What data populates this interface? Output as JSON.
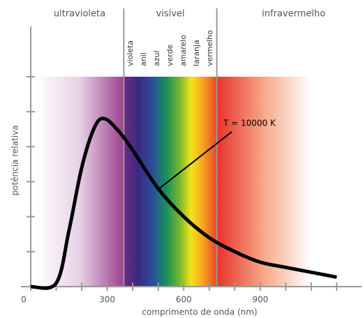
{
  "chart_data": {
    "type": "line",
    "x_label": "comprimento de onda (nm)",
    "y_label": "potência relativa",
    "regions": [
      {
        "label": "ultravioleta",
        "from": 0,
        "to": 365
      },
      {
        "label": "visível",
        "from": 365,
        "to": 730
      },
      {
        "label": "infravermelho",
        "from": 730,
        "to": 1300
      }
    ],
    "spectrum_colors": [
      "violeta",
      "anil",
      "azul",
      "verde",
      "amarelo",
      "laranja",
      "vermelho"
    ],
    "annotation": "T = 10000 K",
    "x": [
      0,
      100,
      150,
      200,
      250,
      290,
      350,
      400,
      500,
      600,
      700,
      800,
      900,
      1000,
      1200
    ],
    "series": [
      {
        "name": "T = 10000 K",
        "color": "#000000",
        "values": [
          0,
          0.1,
          1.6,
          3.4,
          4.55,
          4.8,
          4.4,
          3.9,
          2.8,
          2.0,
          1.4,
          1.0,
          0.7,
          0.55,
          0.27
        ]
      }
    ],
    "xlim": [
      0,
      1300
    ],
    "ylim": [
      0,
      6
    ],
    "xticks": [
      0,
      300,
      600,
      900
    ],
    "xminorticks": [
      100,
      200,
      400,
      500,
      700,
      800,
      1000,
      1100,
      1200
    ],
    "yticks": [
      1,
      2,
      3,
      4,
      5,
      6
    ]
  }
}
